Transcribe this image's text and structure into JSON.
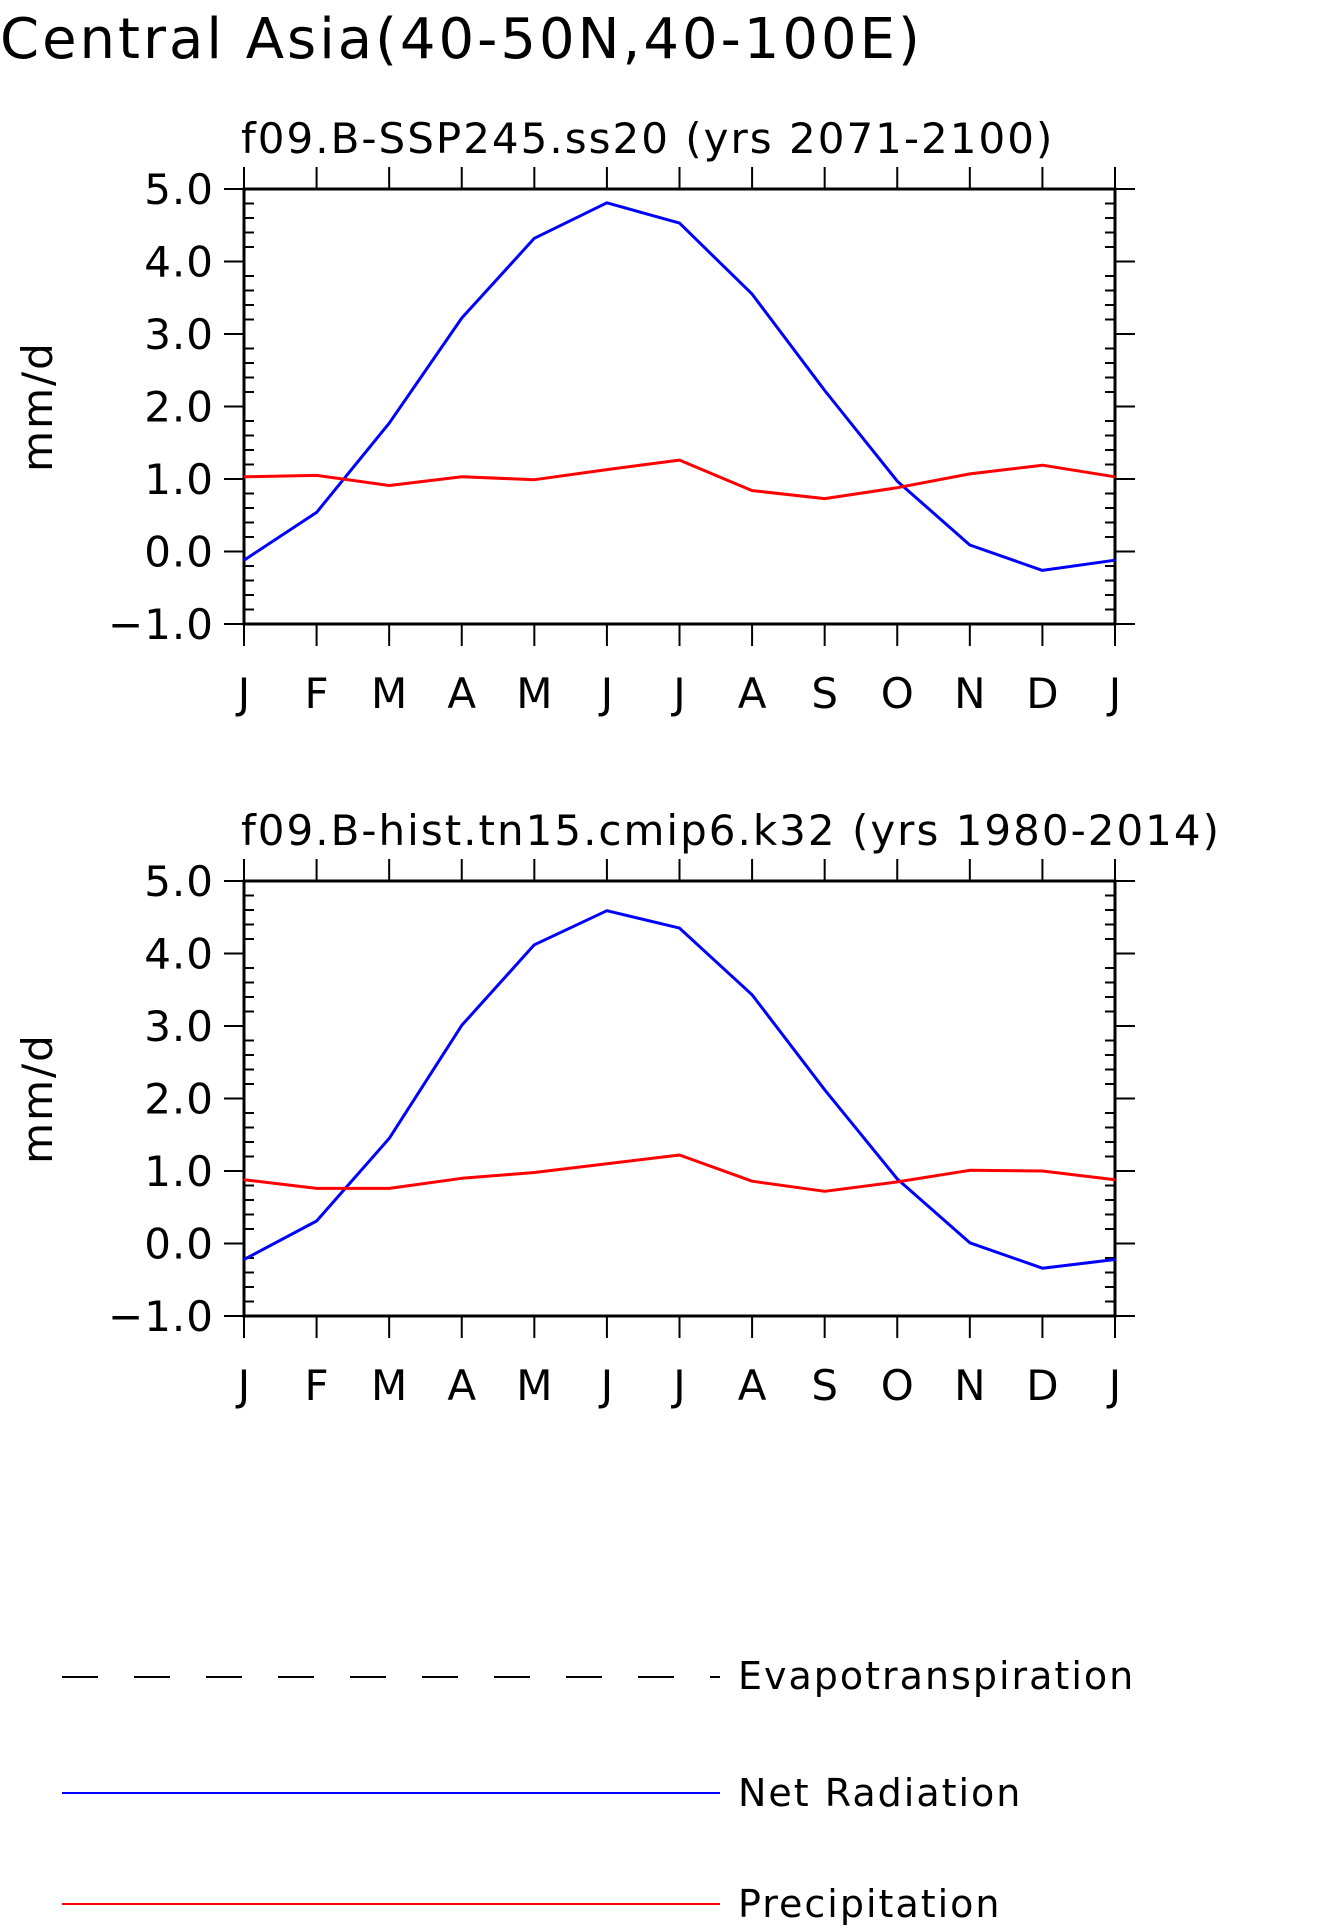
{
  "page_title": "Central Asia(40-50N,40-100E)",
  "legend": {
    "items": [
      {
        "label": "Evapotranspiration",
        "color": "#000000",
        "dash": true
      },
      {
        "label": "Net Radiation",
        "color": "#0000ff",
        "dash": false
      },
      {
        "label": "Precipitation",
        "color": "#ff0000",
        "dash": false
      }
    ]
  },
  "chart_data": [
    {
      "type": "line",
      "title": "f09.B-SSP245.ss20 (yrs 2071-2100)",
      "ylabel": "mm/d",
      "xlabel": "",
      "ylim": [
        -1.0,
        5.0
      ],
      "yticks": [
        "5.0",
        "4.0",
        "3.0",
        "2.0",
        "1.0",
        "0.0",
        "−1.0"
      ],
      "categories": [
        "J",
        "F",
        "M",
        "A",
        "M",
        "J",
        "J",
        "A",
        "S",
        "O",
        "N",
        "D",
        "J"
      ],
      "series": [
        {
          "name": "Net Radiation",
          "color": "#0000ff",
          "values": [
            -0.12,
            0.54,
            1.77,
            3.22,
            4.32,
            4.81,
            4.53,
            3.55,
            2.22,
            0.97,
            0.09,
            -0.26,
            -0.12
          ]
        },
        {
          "name": "Precipitation",
          "color": "#ff0000",
          "values": [
            1.03,
            1.05,
            0.91,
            1.03,
            0.99,
            1.13,
            1.26,
            0.84,
            0.73,
            0.88,
            1.07,
            1.19,
            1.03
          ]
        }
      ]
    },
    {
      "type": "line",
      "title": "f09.B-hist.tn15.cmip6.k32 (yrs 1980-2014)",
      "ylabel": "mm/d",
      "xlabel": "",
      "ylim": [
        -1.0,
        5.0
      ],
      "yticks": [
        "5.0",
        "4.0",
        "3.0",
        "2.0",
        "1.0",
        "0.0",
        "−1.0"
      ],
      "categories": [
        "J",
        "F",
        "M",
        "A",
        "M",
        "J",
        "J",
        "A",
        "S",
        "O",
        "N",
        "D",
        "J"
      ],
      "series": [
        {
          "name": "Net Radiation",
          "color": "#0000ff",
          "values": [
            -0.22,
            0.31,
            1.45,
            3.01,
            4.12,
            4.59,
            4.35,
            3.43,
            2.12,
            0.89,
            0.01,
            -0.34,
            -0.22
          ]
        },
        {
          "name": "Precipitation",
          "color": "#ff0000",
          "values": [
            0.88,
            0.76,
            0.76,
            0.9,
            0.98,
            1.1,
            1.22,
            0.86,
            0.72,
            0.85,
            1.01,
            1.0,
            0.88
          ]
        }
      ]
    }
  ]
}
